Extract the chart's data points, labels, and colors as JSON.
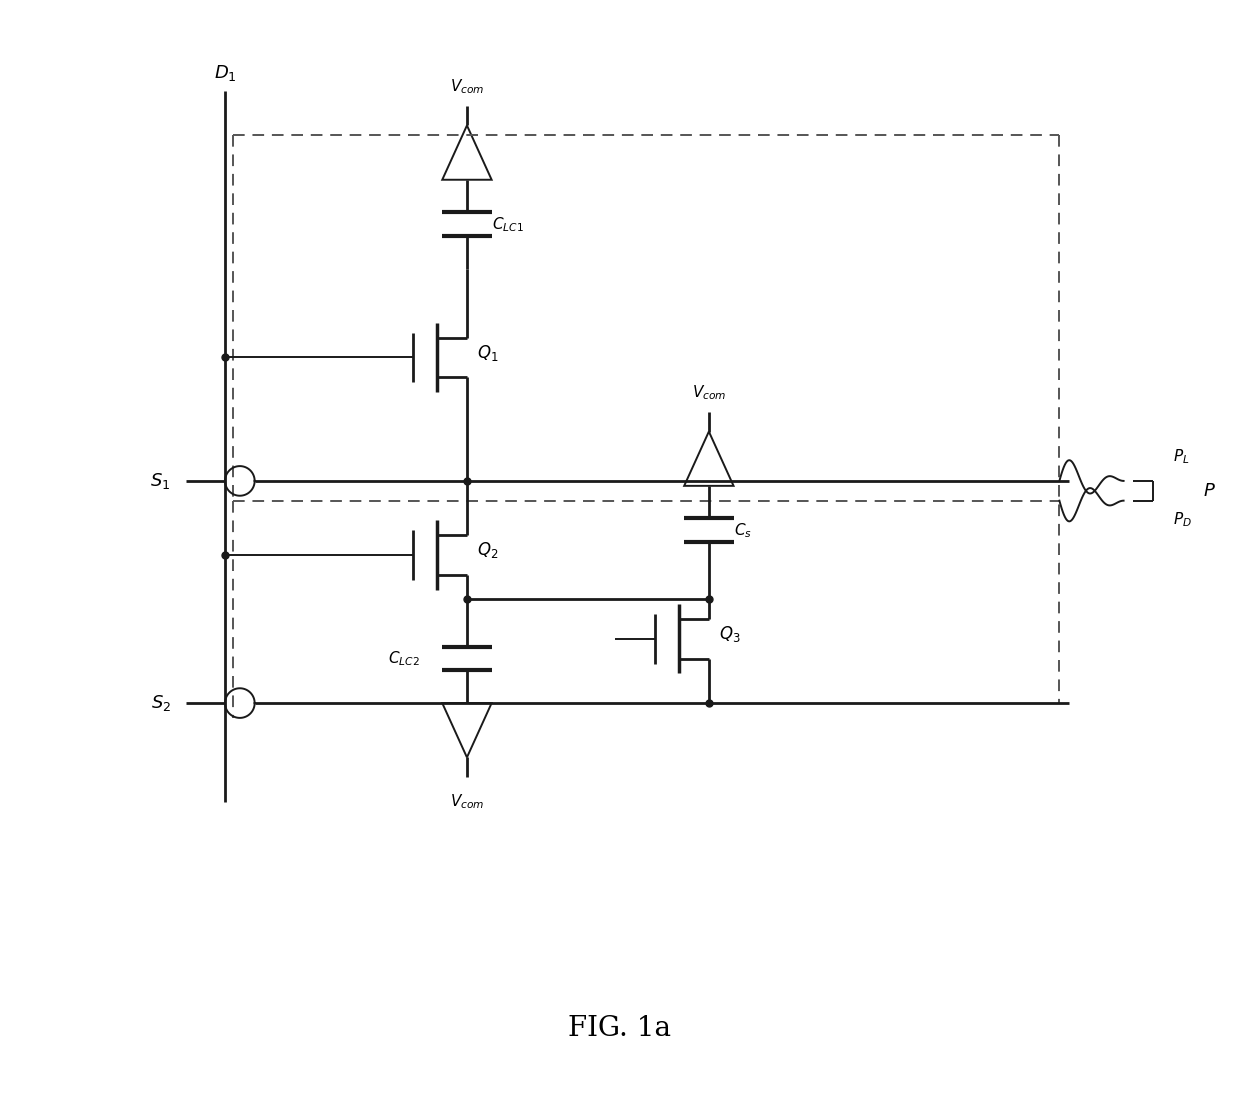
{
  "title": "FIG. 1a",
  "background_color": "#ffffff",
  "line_color": "#1a1a1a",
  "dashed_color": "#555555",
  "fig_width": 12.4,
  "fig_height": 11.05
}
